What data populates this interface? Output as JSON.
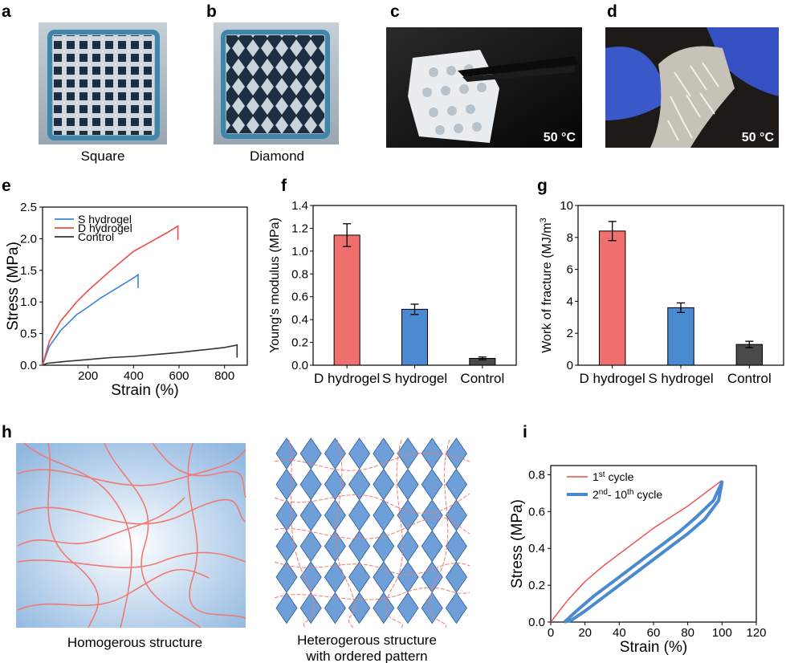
{
  "panels": {
    "a": {
      "label": "a",
      "caption": "Square"
    },
    "b": {
      "label": "b",
      "caption": "Diamond"
    },
    "c": {
      "label": "c",
      "temp": "50 °C"
    },
    "d": {
      "label": "d",
      "temp": "50 °C"
    },
    "e": {
      "label": "e"
    },
    "f": {
      "label": "f"
    },
    "g": {
      "label": "g"
    },
    "h": {
      "label": "h",
      "left_caption": "Homogerous structure",
      "right_caption_line1": "Heterogerous structure",
      "right_caption_line2": "with ordered pattern"
    },
    "i": {
      "label": "i"
    }
  },
  "chart_data": [
    {
      "panel": "e",
      "type": "line",
      "xlabel": "Strain (%)",
      "ylabel": "Stress (MPa)",
      "xlim": [
        0,
        900
      ],
      "ylim": [
        0,
        2.5
      ],
      "xticks": [
        200,
        400,
        600,
        800
      ],
      "yticks": [
        0.0,
        0.5,
        1.0,
        1.5,
        2.0,
        2.5
      ],
      "series": [
        {
          "name": "S hydrogel",
          "color": "#3b82d6",
          "x": [
            0,
            30,
            80,
            150,
            200,
            250,
            300,
            350,
            400,
            420,
            420
          ],
          "y": [
            0,
            0.3,
            0.55,
            0.8,
            0.92,
            1.05,
            1.16,
            1.27,
            1.38,
            1.43,
            1.22
          ]
        },
        {
          "name": "D hydrogel",
          "color": "#ee4b47",
          "x": [
            0,
            30,
            80,
            150,
            200,
            300,
            400,
            450,
            500,
            550,
            595,
            595
          ],
          "y": [
            0,
            0.38,
            0.7,
            1.0,
            1.18,
            1.5,
            1.8,
            1.9,
            2.0,
            2.1,
            2.2,
            1.98
          ]
        },
        {
          "name": "Control",
          "color": "#333333",
          "x": [
            0,
            20,
            100,
            200,
            300,
            400,
            500,
            600,
            700,
            800,
            855,
            855
          ],
          "y": [
            0,
            0.03,
            0.06,
            0.09,
            0.12,
            0.14,
            0.17,
            0.2,
            0.24,
            0.28,
            0.32,
            0.12
          ]
        }
      ]
    },
    {
      "panel": "f",
      "type": "bar",
      "categories": [
        "D hydrogel",
        "S hydrogel",
        "Control"
      ],
      "values": [
        1.14,
        0.49,
        0.06
      ],
      "errors": [
        0.1,
        0.045,
        0.012
      ],
      "colors": [
        "#ee6f6c",
        "#4a8ad0",
        "#4a4a4a"
      ],
      "ylabel": "Young's modulus (MPa)",
      "ylim": [
        0,
        1.4
      ],
      "yticks": [
        "0.0",
        "0.2",
        "0.4",
        "0.6",
        "0.8",
        "1.0",
        "1.2",
        "1.4"
      ]
    },
    {
      "panel": "g",
      "type": "bar",
      "categories": [
        "D hydrogel",
        "S hydrogel",
        "Control"
      ],
      "values": [
        8.4,
        3.6,
        1.3
      ],
      "errors": [
        0.6,
        0.3,
        0.2
      ],
      "colors": [
        "#ee6f6c",
        "#4a8ad0",
        "#4a4a4a"
      ],
      "ylabel": "Work of fracture (MJ/m",
      "ylabel_sup": "3",
      "ylim": [
        0,
        10
      ],
      "yticks": [
        "0",
        "2",
        "4",
        "6",
        "8",
        "10"
      ]
    },
    {
      "panel": "i",
      "type": "line",
      "xlabel": "Strain (%)",
      "ylabel": "Stress (MPa)",
      "xlim": [
        0,
        120
      ],
      "ylim": [
        0,
        0.85
      ],
      "xticks": [
        "0",
        "20",
        "40",
        "60",
        "80",
        "100",
        "120"
      ],
      "yticks": [
        "0.0",
        "0.2",
        "0.4",
        "0.6",
        "0.8"
      ],
      "series": [
        {
          "name": "1st cycle",
          "name_base": "1",
          "name_sup": "st",
          "name_rest": " cycle",
          "color": "#ee4b47",
          "x": [
            0,
            10,
            20,
            30,
            40,
            50,
            60,
            70,
            80,
            90,
            100
          ],
          "y": [
            0,
            0.12,
            0.22,
            0.3,
            0.37,
            0.44,
            0.51,
            0.57,
            0.63,
            0.7,
            0.77
          ]
        },
        {
          "name": "2nd- 10th cycle",
          "name_base": "2",
          "name_sup": "nd",
          "name_mid": "- 10",
          "name_sup2": "th",
          "name_rest": " cycle",
          "color": "#4a8ad0",
          "x": [
            8,
            15,
            25,
            35,
            45,
            55,
            65,
            75,
            85,
            95,
            100,
            100,
            98,
            90,
            80,
            70,
            60,
            50,
            40,
            30,
            20,
            12,
            8
          ],
          "y": [
            0,
            0.06,
            0.14,
            0.21,
            0.28,
            0.35,
            0.42,
            0.49,
            0.57,
            0.66,
            0.76,
            0.76,
            0.66,
            0.56,
            0.48,
            0.41,
            0.34,
            0.27,
            0.2,
            0.13,
            0.06,
            0.01,
            0
          ]
        }
      ]
    }
  ]
}
